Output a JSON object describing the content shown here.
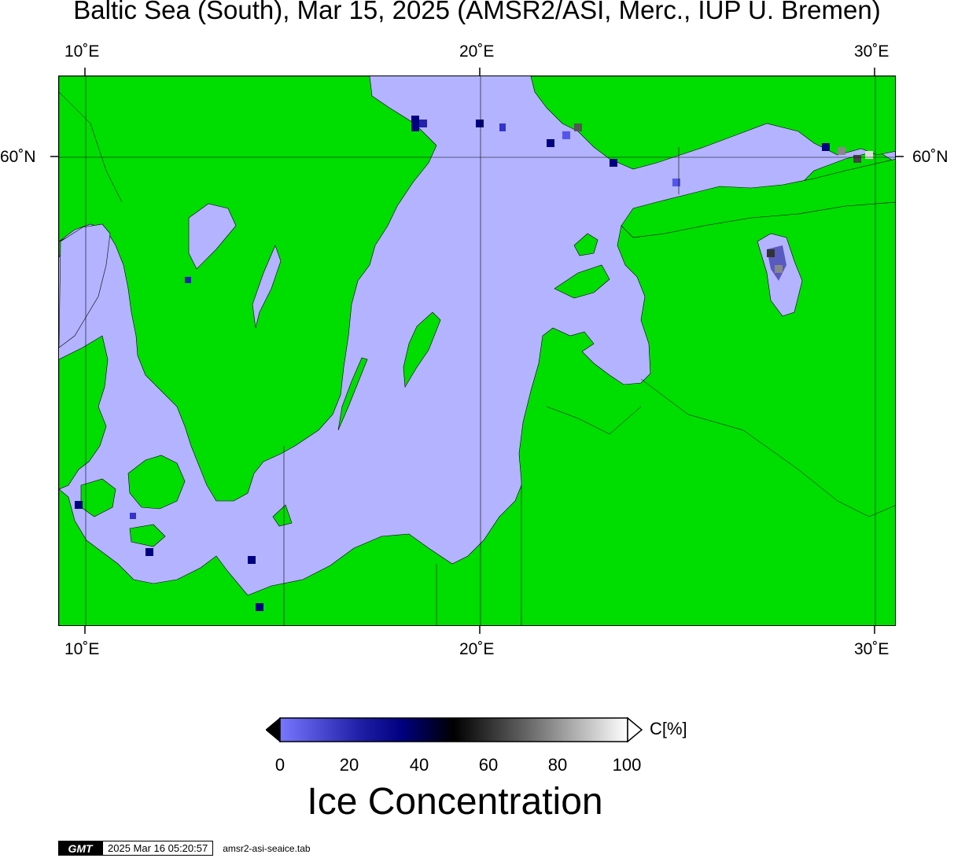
{
  "title": "Baltic Sea (South), Mar 15, 2025 (AMSR2/ASI, Merc., IUP U. Bremen)",
  "axes": {
    "top_lon": [
      "10˚E",
      "20˚E",
      "30˚E"
    ],
    "bottom_lon": [
      "10˚E",
      "20˚E",
      "30˚E"
    ],
    "left_lat": [
      "60˚N"
    ],
    "right_lat": [
      "60˚N"
    ]
  },
  "map": {
    "land_color": "#00dd00",
    "open_water_color": "#b3b3ff",
    "coastline_color": "#000000"
  },
  "colorbar": {
    "unit": "C[%]",
    "ticks": [
      "0",
      "20",
      "40",
      "60",
      "80",
      "100"
    ],
    "title": "Ice Concentration",
    "stops": [
      "#7777ff",
      "#000080",
      "#000000",
      "#808080",
      "#ffffff"
    ]
  },
  "footer": {
    "logo": "GMT",
    "timestamp": "2025 Mar 16 05:20:57",
    "command": "amsr2-asi-seaice.tab"
  }
}
